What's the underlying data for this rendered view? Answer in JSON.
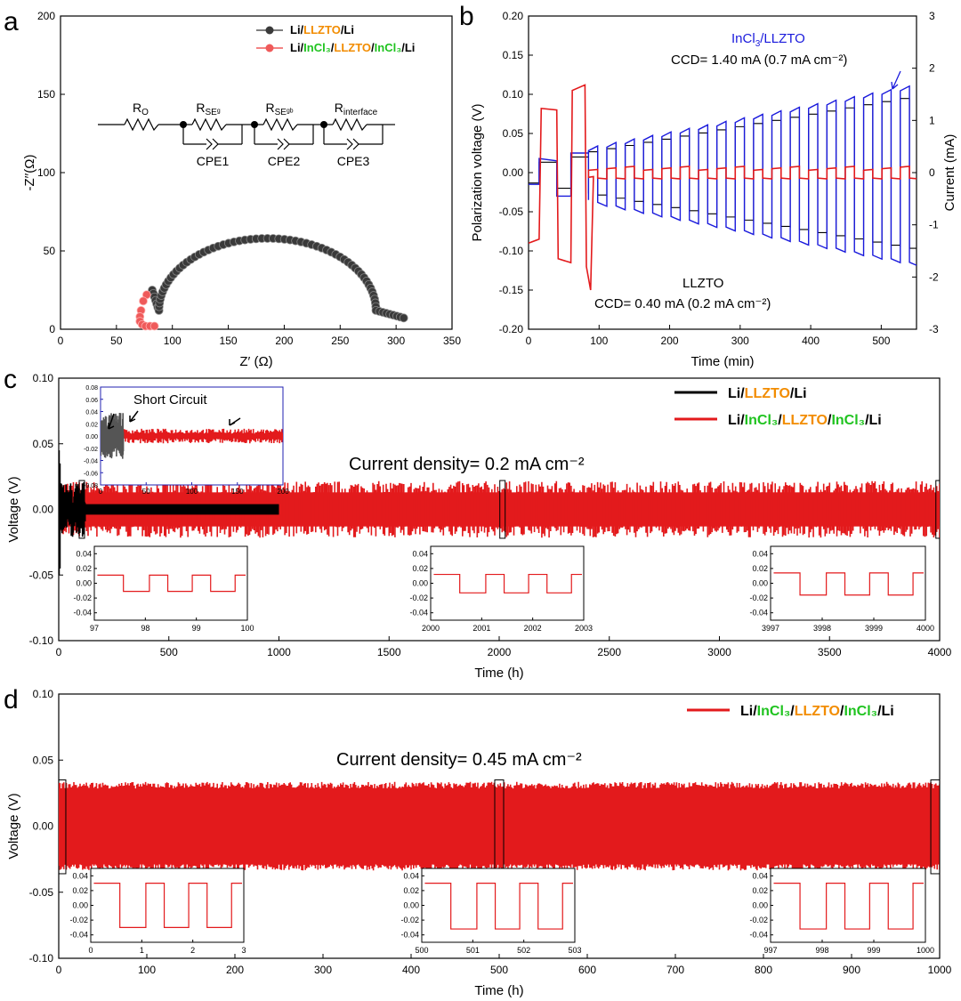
{
  "colors": {
    "black": "#000000",
    "red": "#e31a1c",
    "blue": "#1a1adc",
    "orange": "#f28c00",
    "green": "#1fc31f",
    "gray": "#555555",
    "salmon": "#ef5a5a"
  },
  "chart_data": [
    {
      "panel": "a",
      "type": "scatter",
      "xlabel": "Z′ (Ω)",
      "ylabel": "-Z′′(Ω)",
      "xlim": [
        0,
        350
      ],
      "ylim": [
        0,
        200
      ],
      "xticks": [
        "0",
        "50",
        "100",
        "150",
        "200",
        "250",
        "300",
        "350"
      ],
      "yticks": [
        "0",
        "50",
        "100",
        "150",
        "200"
      ],
      "legend": {
        "placement": "top-right",
        "entries": [
          {
            "parts": [
              [
                "Li/",
                "black"
              ],
              [
                "LLZTO",
                "orange"
              ],
              [
                "/Li",
                "black"
              ]
            ]
          },
          {
            "parts": [
              [
                "Li/",
                "black"
              ],
              [
                "InCl₃",
                "green"
              ],
              [
                "/",
                "black"
              ],
              [
                "LLZTO",
                "orange"
              ],
              [
                "/",
                "black"
              ],
              [
                "InCl₃",
                "green"
              ],
              [
                "/Li",
                "black"
              ]
            ]
          }
        ]
      },
      "circuit": {
        "resistors": [
          "R_O",
          "R_SE^g",
          "R_SE^gb",
          "R_interface"
        ],
        "cpes": [
          "CPE1",
          "CPE2",
          "CPE3"
        ]
      },
      "series": [
        {
          "color": "gray",
          "x0": 82,
          "semicircle": {
            "start": 88,
            "end": 282,
            "peak": 58
          },
          "tail_end": [
            307,
            7
          ]
        },
        {
          "color": "salmon",
          "points": [
            [
              77,
              22
            ],
            [
              74,
              18
            ],
            [
              72,
              12
            ],
            [
              71,
              8
            ],
            [
              71,
              5
            ],
            [
              73,
              3
            ],
            [
              76,
              2
            ],
            [
              80,
              2
            ],
            [
              84,
              2
            ]
          ]
        }
      ]
    },
    {
      "panel": "b",
      "type": "line",
      "xlabel": "Time (min)",
      "ylabel": "Polarization voltage (V)",
      "y2label": "Current (mA)",
      "xlim": [
        0,
        550
      ],
      "ylim": [
        -0.2,
        0.2
      ],
      "y2lim": [
        -3,
        3
      ],
      "xticks": [
        "0",
        "100",
        "200",
        "300",
        "400",
        "500"
      ],
      "yticks": [
        "-0.20",
        "-0.15",
        "-0.10",
        "-0.05",
        "0.00",
        "0.05",
        "0.10",
        "0.15",
        "0.20"
      ],
      "y2ticks": [
        "-3",
        "-2",
        "-1",
        "0",
        "1",
        "2",
        "3"
      ],
      "annotations": [
        {
          "text_parts": [
            [
              "InCl",
              "blue"
            ],
            [
              "3",
              "blue-sub"
            ],
            [
              "/LLZTO",
              "blue"
            ]
          ],
          "color": "blue"
        },
        {
          "text": "CCD= 1.40 mA (0.7 mA cm⁻²)",
          "color": "blue"
        },
        {
          "text": "LLZTO",
          "color": "red"
        },
        {
          "text": "CCD= 0.40 mA (0.2 mA cm⁻²)",
          "color": "red"
        }
      ],
      "series": [
        {
          "name": "current",
          "color": "black"
        },
        {
          "name": "InCl3/LLZTO",
          "color": "blue"
        },
        {
          "name": "LLZTO",
          "color": "red"
        }
      ]
    },
    {
      "panel": "c",
      "type": "line",
      "xlabel": "Time (h)",
      "ylabel": "Voltage (V)",
      "xlim": [
        0,
        4000
      ],
      "ylim": [
        -0.1,
        0.1
      ],
      "xticks": [
        "0",
        "500",
        "1000",
        "1500",
        "2000",
        "2500",
        "3000",
        "3500",
        "4000"
      ],
      "yticks": [
        "-0.10",
        "-0.05",
        "0.00",
        "0.05",
        "0.10"
      ],
      "title": "Current density= 0.2 mA cm⁻²",
      "legend": {
        "placement": "top-right",
        "entries": [
          {
            "color": "black",
            "parts": [
              [
                "Li/",
                "black"
              ],
              [
                "LLZTO",
                "orange"
              ],
              [
                "/Li",
                "black"
              ]
            ]
          },
          {
            "color": "red",
            "parts": [
              [
                "Li/",
                "black"
              ],
              [
                "InCl₃",
                "green"
              ],
              [
                "/",
                "black"
              ],
              [
                "LLZTO",
                "orange"
              ],
              [
                "/",
                "black"
              ],
              [
                "InCl₃",
                "green"
              ],
              [
                "/Li",
                "black"
              ]
            ]
          }
        ]
      },
      "series": [
        {
          "color": "black",
          "x_end": 1000,
          "amplitude": 0.005
        },
        {
          "color": "red",
          "x_end": 4000,
          "amplitude": 0.013
        }
      ],
      "inset_short": {
        "label": "Short Circuit",
        "xlim": [
          0,
          200
        ],
        "ylim": [
          -0.08,
          0.08
        ],
        "xticks": [
          "0",
          "50",
          "100",
          "150",
          "200"
        ],
        "yticks": [
          "-0.08",
          "-0.06",
          "-0.04",
          "-0.02",
          "0.00",
          "0.02",
          "0.04",
          "0.06",
          "0.08"
        ]
      },
      "insets": [
        {
          "xticks": [
            "97",
            "98",
            "99",
            "100"
          ],
          "yticks": [
            "-0.04",
            "-0.02",
            "0.00",
            "0.02",
            "0.04"
          ],
          "amp": [
            0.011,
            -0.011
          ]
        },
        {
          "xticks": [
            "2000",
            "2001",
            "2002",
            "2003"
          ],
          "yticks": [
            "-0.04",
            "-0.02",
            "0.00",
            "0.02",
            "0.04"
          ],
          "amp": [
            0.012,
            -0.013
          ]
        },
        {
          "xticks": [
            "3997",
            "3998",
            "3999",
            "4000"
          ],
          "yticks": [
            "-0.04",
            "-0.02",
            "0.00",
            "0.02",
            "0.04"
          ],
          "amp": [
            0.014,
            -0.016
          ]
        }
      ]
    },
    {
      "panel": "d",
      "type": "line",
      "xlabel": "Time (h)",
      "ylabel": "Voltage (V)",
      "xlim": [
        0,
        1000
      ],
      "ylim": [
        -0.1,
        0.1
      ],
      "xticks": [
        "0",
        "100",
        "200",
        "300",
        "400",
        "500",
        "600",
        "700",
        "800",
        "900",
        "1000"
      ],
      "yticks": [
        "-0.10",
        "-0.05",
        "0.00",
        "0.05",
        "0.10"
      ],
      "title": "Current density= 0.45 mA cm⁻²",
      "legend": {
        "placement": "top-right",
        "entries": [
          {
            "color": "red",
            "parts": [
              [
                "Li/",
                "black"
              ],
              [
                "InCl₃",
                "green"
              ],
              [
                "/",
                "black"
              ],
              [
                "LLZTO",
                "orange"
              ],
              [
                "/",
                "black"
              ],
              [
                "InCl₃",
                "green"
              ],
              [
                "/Li",
                "black"
              ]
            ]
          }
        ]
      },
      "series": [
        {
          "color": "red",
          "x_end": 1000,
          "amplitude": 0.03
        }
      ],
      "insets": [
        {
          "xticks": [
            "0",
            "1",
            "2",
            "3"
          ],
          "yticks": [
            "-0.04",
            "-0.02",
            "0.00",
            "0.02",
            "0.04"
          ],
          "amp": [
            0.03,
            -0.03
          ]
        },
        {
          "xticks": [
            "500",
            "501",
            "502",
            "503"
          ],
          "yticks": [
            "-0.04",
            "-0.02",
            "0.00",
            "0.02",
            "0.04"
          ],
          "amp": [
            0.03,
            -0.032
          ]
        },
        {
          "xticks": [
            "997",
            "998",
            "999",
            "1000"
          ],
          "yticks": [
            "-0.04",
            "-0.02",
            "0.00",
            "0.02",
            "0.04"
          ],
          "amp": [
            0.03,
            -0.032
          ]
        }
      ]
    }
  ],
  "panel_labels": [
    "a",
    "b",
    "c",
    "d"
  ]
}
